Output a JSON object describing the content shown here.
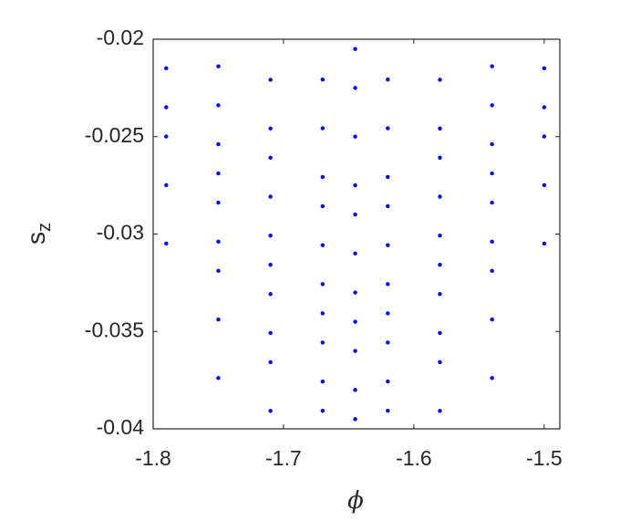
{
  "chart_data": {
    "type": "scatter",
    "xlabel": "ϕ",
    "ylabel": "s",
    "ylabel_subscript": "z",
    "color": "#0000ff",
    "x": [
      -1.645,
      -1.67,
      -1.645,
      -1.62,
      -1.71,
      -1.67,
      -1.645,
      -1.62,
      -1.58,
      -1.71,
      -1.67,
      -1.645,
      -1.62,
      -1.58,
      -1.75,
      -1.71,
      -1.67,
      -1.645,
      -1.62,
      -1.58,
      -1.54,
      -1.75,
      -1.71,
      -1.67,
      -1.645,
      -1.62,
      -1.58,
      -1.54,
      -1.75,
      -1.71,
      -1.67,
      -1.645,
      -1.62,
      -1.58,
      -1.54,
      -1.75,
      -1.71,
      -1.67,
      -1.645,
      -1.62,
      -1.58,
      -1.54,
      -1.79,
      -1.75,
      -1.71,
      -1.67,
      -1.645,
      -1.62,
      -1.58,
      -1.54,
      -1.5,
      -1.79,
      -1.75,
      -1.71,
      -1.67,
      -1.645,
      -1.62,
      -1.58,
      -1.54,
      -1.5,
      -1.79,
      -1.75,
      -1.71,
      -1.67,
      -1.645,
      -1.62,
      -1.58,
      -1.54,
      -1.5,
      -1.79,
      -1.75,
      -1.71,
      -1.58,
      -1.54,
      -1.5,
      -1.79,
      -1.75,
      -1.54,
      -1.5
    ],
    "values": [
      -0.0205,
      -0.02207,
      -0.0225,
      -0.02207,
      -0.02208,
      -0.02457,
      -0.025,
      -0.02457,
      -0.02208,
      -0.02458,
      -0.02707,
      -0.0275,
      -0.02707,
      -0.02458,
      -0.02139,
      -0.02608,
      -0.02857,
      -0.029,
      -0.02857,
      -0.02608,
      -0.02139,
      -0.02339,
      -0.02808,
      -0.03057,
      -0.031,
      -0.03057,
      -0.02808,
      -0.02339,
      -0.02539,
      -0.03008,
      -0.03257,
      -0.033,
      -0.03257,
      -0.03008,
      -0.02539,
      -0.02689,
      -0.03158,
      -0.03407,
      -0.0345,
      -0.03407,
      -0.03158,
      -0.02689,
      -0.02149,
      -0.02839,
      -0.03308,
      -0.03557,
      -0.036,
      -0.03557,
      -0.03308,
      -0.02839,
      -0.02149,
      -0.02349,
      -0.03039,
      -0.03508,
      -0.03757,
      -0.038,
      -0.03757,
      -0.03508,
      -0.03039,
      -0.02349,
      -0.02499,
      -0.03189,
      -0.03658,
      -0.03907,
      -0.0395,
      -0.03907,
      -0.03658,
      -0.03189,
      -0.02499,
      -0.02749,
      -0.03439,
      -0.03908,
      -0.03908,
      -0.03439,
      -0.02749,
      -0.03049,
      -0.03739,
      -0.03739,
      -0.03049
    ],
    "xlim": [
      -1.8,
      -1.488
    ],
    "ylim": [
      -0.04,
      -0.02
    ],
    "xticks": [
      -1.8,
      -1.7,
      -1.6,
      -1.5
    ],
    "yticks": [
      -0.04,
      -0.035,
      -0.03,
      -0.025,
      -0.02
    ]
  }
}
